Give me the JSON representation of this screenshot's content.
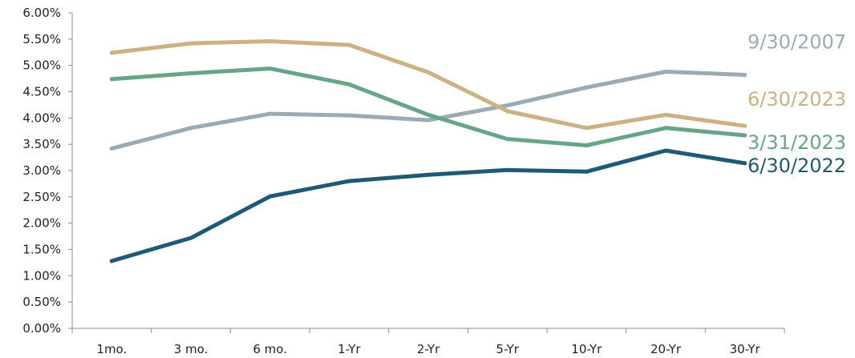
{
  "chart_data": {
    "type": "line",
    "title": "",
    "xlabel": "",
    "ylabel": "",
    "categories": [
      "1mo.",
      "3 mo.",
      "6 mo.",
      "1-Yr",
      "2-Yr",
      "5-Yr",
      "10-Yr",
      "20-Yr",
      "30-Yr"
    ],
    "ylim": [
      0,
      6
    ],
    "y_ticks": [
      "0.00%",
      "0.50%",
      "1.00%",
      "1.50%",
      "2.00%",
      "2.50%",
      "3.00%",
      "3.50%",
      "4.00%",
      "4.50%",
      "5.00%",
      "5.50%",
      "6.00%"
    ],
    "grid": false,
    "legend": "inline-right",
    "series": [
      {
        "name": "9/30/2007",
        "color": "#9aabb6",
        "values": [
          3.42,
          3.81,
          4.08,
          4.05,
          3.96,
          4.24,
          4.58,
          4.88,
          4.82
        ]
      },
      {
        "name": "6/30/2023",
        "color": "#ccb183",
        "values": [
          5.24,
          5.42,
          5.46,
          5.39,
          4.87,
          4.13,
          3.81,
          4.06,
          3.85
        ]
      },
      {
        "name": "3/31/2023",
        "color": "#66a585",
        "values": [
          4.74,
          4.85,
          4.94,
          4.64,
          4.06,
          3.6,
          3.48,
          3.81,
          3.67
        ]
      },
      {
        "name": "6/30/2022",
        "color": "#1e5a76",
        "values": [
          1.28,
          1.72,
          2.51,
          2.8,
          2.92,
          3.01,
          2.98,
          3.38,
          3.14
        ]
      }
    ]
  }
}
